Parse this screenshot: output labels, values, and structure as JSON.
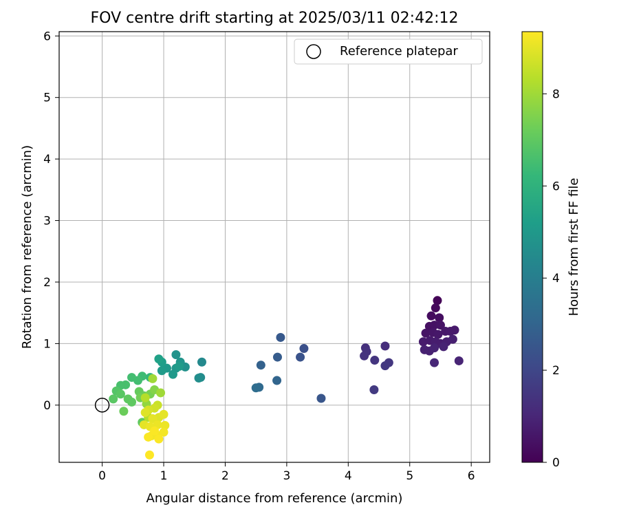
{
  "chart_data": {
    "type": "scatter",
    "title": "FOV centre drift starting at 2025/03/11 02:42:12",
    "xlabel": "Angular distance from reference (arcmin)",
    "ylabel": "Rotation from reference (arcmin)",
    "xlim": [
      -0.7,
      6.3
    ],
    "ylim": [
      -0.93,
      6.07
    ],
    "xticks": [
      0,
      1,
      2,
      3,
      4,
      5,
      6
    ],
    "yticks": [
      0,
      1,
      2,
      3,
      4,
      5,
      6
    ],
    "grid": true,
    "legend": {
      "position": "top-right",
      "entries": [
        "Reference platepar"
      ]
    },
    "reference_point": {
      "x": 0,
      "y": 0,
      "marker": "hollow-circle"
    },
    "colorbar": {
      "label": "Hours from first FF file",
      "range": [
        0,
        9.35
      ],
      "ticks": [
        0,
        2,
        4,
        6,
        8
      ],
      "colormap": "viridis",
      "colors": [
        "#440154",
        "#482878",
        "#3e4989",
        "#31688e",
        "#26828e",
        "#1f9e89",
        "#35b779",
        "#6ece58",
        "#b5de2b",
        "#fde725"
      ]
    },
    "points": [
      {
        "x": 5.45,
        "y": 1.7,
        "t": 0.1
      },
      {
        "x": 5.42,
        "y": 1.58,
        "t": 0.2
      },
      {
        "x": 5.35,
        "y": 1.45,
        "t": 0.3
      },
      {
        "x": 5.48,
        "y": 1.42,
        "t": 0.35
      },
      {
        "x": 5.32,
        "y": 1.28,
        "t": 0.4
      },
      {
        "x": 5.4,
        "y": 1.3,
        "t": 0.45
      },
      {
        "x": 5.5,
        "y": 1.3,
        "t": 0.5
      },
      {
        "x": 5.26,
        "y": 1.17,
        "t": 0.5
      },
      {
        "x": 5.38,
        "y": 1.18,
        "t": 0.55
      },
      {
        "x": 5.46,
        "y": 1.15,
        "t": 0.6
      },
      {
        "x": 5.58,
        "y": 1.2,
        "t": 0.6
      },
      {
        "x": 5.66,
        "y": 1.2,
        "t": 0.65
      },
      {
        "x": 5.73,
        "y": 1.22,
        "t": 0.65
      },
      {
        "x": 5.22,
        "y": 1.03,
        "t": 0.7
      },
      {
        "x": 5.33,
        "y": 1.05,
        "t": 0.7
      },
      {
        "x": 5.42,
        "y": 1.03,
        "t": 0.75
      },
      {
        "x": 5.5,
        "y": 1.0,
        "t": 0.75
      },
      {
        "x": 5.6,
        "y": 1.03,
        "t": 0.8
      },
      {
        "x": 5.7,
        "y": 1.07,
        "t": 0.8
      },
      {
        "x": 5.24,
        "y": 0.9,
        "t": 0.85
      },
      {
        "x": 5.32,
        "y": 0.88,
        "t": 0.85
      },
      {
        "x": 5.4,
        "y": 0.93,
        "t": 0.9
      },
      {
        "x": 5.55,
        "y": 0.95,
        "t": 0.9
      },
      {
        "x": 5.8,
        "y": 0.72,
        "t": 0.95
      },
      {
        "x": 5.4,
        "y": 0.69,
        "t": 1.0
      },
      {
        "x": 4.6,
        "y": 0.96,
        "t": 1.2
      },
      {
        "x": 4.28,
        "y": 0.93,
        "t": 1.3
      },
      {
        "x": 4.3,
        "y": 0.87,
        "t": 1.35
      },
      {
        "x": 4.26,
        "y": 0.8,
        "t": 1.4
      },
      {
        "x": 4.43,
        "y": 0.73,
        "t": 1.45
      },
      {
        "x": 4.66,
        "y": 0.69,
        "t": 1.5
      },
      {
        "x": 4.6,
        "y": 0.64,
        "t": 1.55
      },
      {
        "x": 4.42,
        "y": 0.25,
        "t": 1.6
      },
      {
        "x": 3.28,
        "y": 0.92,
        "t": 2.3
      },
      {
        "x": 3.22,
        "y": 0.78,
        "t": 2.4
      },
      {
        "x": 2.9,
        "y": 1.1,
        "t": 2.6
      },
      {
        "x": 2.85,
        "y": 0.78,
        "t": 2.7
      },
      {
        "x": 2.58,
        "y": 0.65,
        "t": 2.9
      },
      {
        "x": 2.84,
        "y": 0.4,
        "t": 3.0
      },
      {
        "x": 3.56,
        "y": 0.11,
        "t": 2.5
      },
      {
        "x": 2.55,
        "y": 0.29,
        "t": 3.2
      },
      {
        "x": 2.5,
        "y": 0.28,
        "t": 3.3
      },
      {
        "x": 1.62,
        "y": 0.7,
        "t": 4.4
      },
      {
        "x": 1.6,
        "y": 0.45,
        "t": 4.5
      },
      {
        "x": 1.57,
        "y": 0.44,
        "t": 4.6
      },
      {
        "x": 1.35,
        "y": 0.62,
        "t": 4.7
      },
      {
        "x": 1.2,
        "y": 0.82,
        "t": 4.8
      },
      {
        "x": 1.27,
        "y": 0.7,
        "t": 4.85
      },
      {
        "x": 1.2,
        "y": 0.6,
        "t": 4.9
      },
      {
        "x": 1.05,
        "y": 0.6,
        "t": 5.0
      },
      {
        "x": 1.15,
        "y": 0.5,
        "t": 5.0
      },
      {
        "x": 0.97,
        "y": 0.56,
        "t": 5.1
      },
      {
        "x": 0.97,
        "y": 0.7,
        "t": 5.2
      },
      {
        "x": 0.92,
        "y": 0.75,
        "t": 5.3
      },
      {
        "x": 1.25,
        "y": 0.63,
        "t": 5.1
      },
      {
        "x": 0.78,
        "y": 0.45,
        "t": 6.2
      },
      {
        "x": 0.65,
        "y": 0.47,
        "t": 6.4
      },
      {
        "x": 0.58,
        "y": 0.4,
        "t": 6.5
      },
      {
        "x": 0.48,
        "y": 0.45,
        "t": 6.5
      },
      {
        "x": 0.38,
        "y": 0.33,
        "t": 6.6
      },
      {
        "x": 0.3,
        "y": 0.32,
        "t": 6.6
      },
      {
        "x": 0.23,
        "y": 0.23,
        "t": 6.8
      },
      {
        "x": 0.18,
        "y": 0.1,
        "t": 6.9
      },
      {
        "x": 0.3,
        "y": 0.18,
        "t": 6.9
      },
      {
        "x": 0.42,
        "y": 0.1,
        "t": 7.0
      },
      {
        "x": 0.48,
        "y": 0.05,
        "t": 7.0
      },
      {
        "x": 0.6,
        "y": 0.22,
        "t": 7.1
      },
      {
        "x": 0.68,
        "y": 0.15,
        "t": 7.2
      },
      {
        "x": 0.35,
        "y": -0.1,
        "t": 7.2
      },
      {
        "x": 0.62,
        "y": 0.12,
        "t": 7.3
      },
      {
        "x": 0.78,
        "y": 0.18,
        "t": 7.4
      },
      {
        "x": 0.85,
        "y": 0.25,
        "t": 7.6
      },
      {
        "x": 0.72,
        "y": 0.02,
        "t": 7.8
      },
      {
        "x": 0.82,
        "y": 0.43,
        "t": 8.0
      },
      {
        "x": 0.95,
        "y": 0.2,
        "t": 8.0
      },
      {
        "x": 0.7,
        "y": 0.12,
        "t": 8.3
      },
      {
        "x": 0.65,
        "y": -0.28,
        "t": 7.0
      },
      {
        "x": 0.75,
        "y": -0.2,
        "t": 8.3
      },
      {
        "x": 0.9,
        "y": 0.0,
        "t": 8.6
      },
      {
        "x": 0.85,
        "y": -0.05,
        "t": 8.7
      },
      {
        "x": 0.75,
        "y": -0.08,
        "t": 8.8
      },
      {
        "x": 0.7,
        "y": -0.12,
        "t": 8.9
      },
      {
        "x": 0.92,
        "y": -0.2,
        "t": 8.9
      },
      {
        "x": 0.82,
        "y": -0.22,
        "t": 9.0
      },
      {
        "x": 1.0,
        "y": -0.15,
        "t": 9.0
      },
      {
        "x": 0.68,
        "y": -0.32,
        "t": 9.0
      },
      {
        "x": 0.78,
        "y": -0.35,
        "t": 9.1
      },
      {
        "x": 0.9,
        "y": -0.32,
        "t": 9.1
      },
      {
        "x": 1.02,
        "y": -0.33,
        "t": 9.1
      },
      {
        "x": 1.0,
        "y": -0.44,
        "t": 9.2
      },
      {
        "x": 0.88,
        "y": -0.48,
        "t": 9.2
      },
      {
        "x": 0.8,
        "y": -0.5,
        "t": 9.2
      },
      {
        "x": 0.75,
        "y": -0.52,
        "t": 9.3
      },
      {
        "x": 0.92,
        "y": -0.55,
        "t": 9.3
      },
      {
        "x": 0.85,
        "y": -0.42,
        "t": 9.3
      },
      {
        "x": 0.77,
        "y": -0.81,
        "t": 9.35
      }
    ]
  }
}
